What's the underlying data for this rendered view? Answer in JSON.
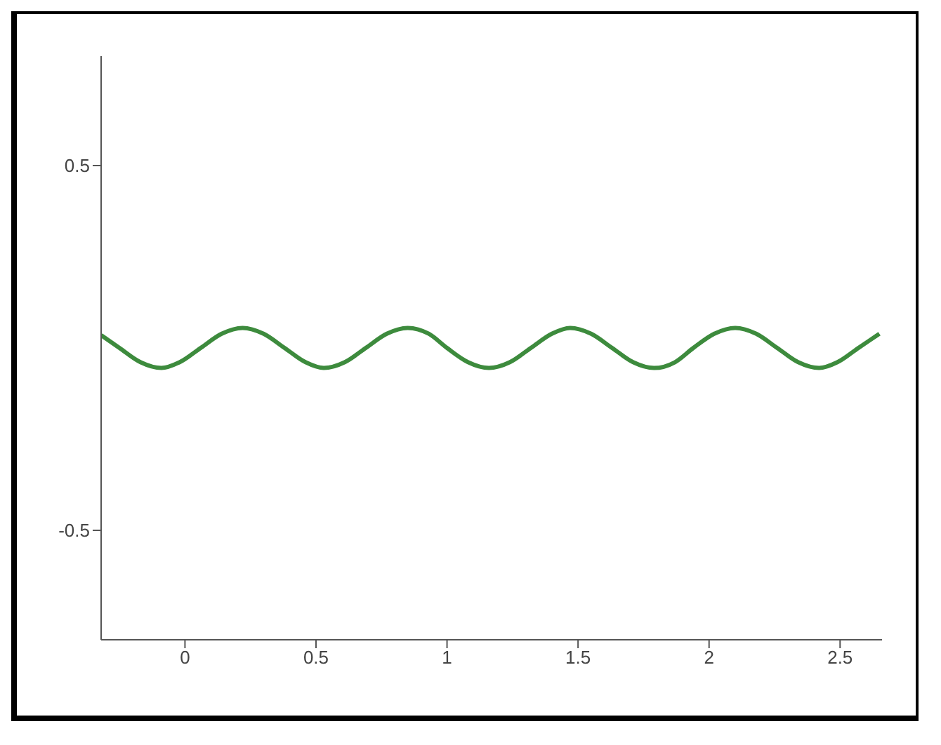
{
  "chart_data": {
    "type": "line",
    "xlim": [
      -0.32,
      2.66
    ],
    "xticks": [
      0,
      0.5,
      1,
      1.5,
      2,
      2.5
    ],
    "ylim": [
      -0.8,
      0.8
    ],
    "yticks": [
      -0.5,
      0.5
    ],
    "grid": false,
    "marker": "none",
    "line_style": "solid",
    "series": [
      {
        "color": "#3d8b3d",
        "x": [
          -0.32,
          -0.25,
          -0.17,
          -0.09,
          -0.02,
          0.06,
          0.14,
          0.22,
          0.3,
          0.38,
          0.46,
          0.53,
          0.61,
          0.69,
          0.77,
          0.85,
          0.93,
          1.0,
          1.08,
          1.16,
          1.24,
          1.32,
          1.4,
          1.47,
          1.55,
          1.63,
          1.71,
          1.79,
          1.87,
          1.94,
          2.02,
          2.1,
          2.18,
          2.26,
          2.34,
          2.42,
          2.49,
          2.57,
          2.65
        ],
        "values": [
          0.035,
          0,
          -0.039,
          -0.055,
          -0.039,
          0,
          0.039,
          0.055,
          0.039,
          0,
          -0.039,
          -0.055,
          -0.039,
          0,
          0.039,
          0.055,
          0.039,
          0,
          -0.039,
          -0.055,
          -0.039,
          0,
          0.039,
          0.055,
          0.039,
          0,
          -0.039,
          -0.055,
          -0.039,
          0,
          0.039,
          0.055,
          0.039,
          0,
          -0.039,
          -0.055,
          -0.039,
          0,
          0.039
        ]
      }
    ]
  }
}
